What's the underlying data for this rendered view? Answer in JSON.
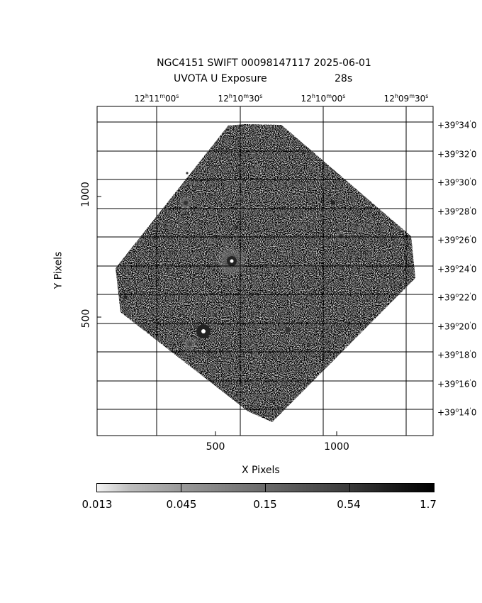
{
  "header": {
    "line1": "NGC4151 SWIFT 00098147117 2025-06-01",
    "line2_left": "UVOTA U Exposure",
    "line2_right": "28s"
  },
  "axes": {
    "xlabel": "X Pixels",
    "ylabel": "Y Pixels",
    "xticks": [
      "500",
      "1000"
    ],
    "yticks": [
      "1000",
      "500"
    ]
  },
  "ra_labels": [
    {
      "h": "12",
      "m": "11",
      "s": "00"
    },
    {
      "h": "12",
      "m": "10",
      "s": "30"
    },
    {
      "h": "12",
      "m": "10",
      "s": "00"
    },
    {
      "h": "12",
      "m": "09",
      "s": "30"
    }
  ],
  "dec_labels": [
    {
      "sign": "+",
      "deg": "39",
      "min": "34",
      "sec": "0"
    },
    {
      "sign": "+",
      "deg": "39",
      "min": "32",
      "sec": "0"
    },
    {
      "sign": "+",
      "deg": "39",
      "min": "30",
      "sec": "0"
    },
    {
      "sign": "+",
      "deg": "39",
      "min": "28",
      "sec": "0"
    },
    {
      "sign": "+",
      "deg": "39",
      "min": "26",
      "sec": "0"
    },
    {
      "sign": "+",
      "deg": "39",
      "min": "24",
      "sec": "0"
    },
    {
      "sign": "+",
      "deg": "39",
      "min": "22",
      "sec": "0"
    },
    {
      "sign": "+",
      "deg": "39",
      "min": "20",
      "sec": "0"
    },
    {
      "sign": "+",
      "deg": "39",
      "min": "18",
      "sec": "0"
    },
    {
      "sign": "+",
      "deg": "39",
      "min": "16",
      "sec": "0"
    },
    {
      "sign": "+",
      "deg": "39",
      "min": "14",
      "sec": "0"
    }
  ],
  "colorbar": {
    "ticks": [
      "0.013",
      "0.045",
      "0.15",
      "0.54",
      "1.7"
    ],
    "scale": "log",
    "colormap": "grayscale-inverted"
  }
}
